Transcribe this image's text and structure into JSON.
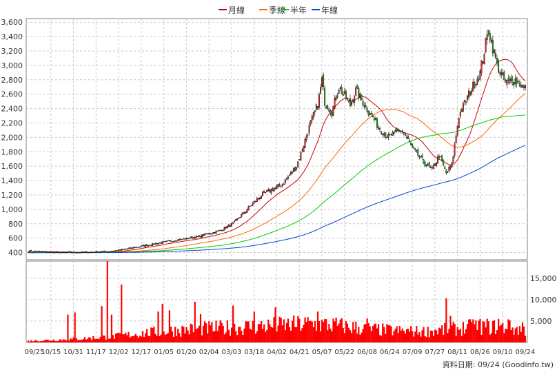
{
  "legend": [
    {
      "label": "月線",
      "color": "#cc0000"
    },
    {
      "label": "季線",
      "color": "#ff6600"
    },
    {
      "label": "半年",
      "color": "#00cc00"
    },
    {
      "label": "年線",
      "color": "#0044cc"
    }
  ],
  "source": "資料日期: 09/24 (Goodinfo.tw)",
  "chart_data": [
    {
      "type": "candlestick",
      "title": "",
      "ylim": [
        300,
        3650
      ],
      "y_ticks": [
        400,
        600,
        800,
        1000,
        1200,
        1400,
        1600,
        1800,
        2000,
        2200,
        2400,
        2600,
        2800,
        3000,
        3200,
        3400,
        3600
      ],
      "x_tick_labels": [
        "09/25",
        "10/15",
        "10/31",
        "11/17",
        "12/02",
        "12/17",
        "01/05",
        "01/20",
        "02/04",
        "03/03",
        "03/18",
        "04/02",
        "04/21",
        "05/07",
        "05/22",
        "06/08",
        "06/24",
        "07/09",
        "07/27",
        "08/11",
        "08/26",
        "09/10",
        "09/24"
      ],
      "grid": true,
      "legend_position": "top-center",
      "close_anchors": [
        [
          0,
          420
        ],
        [
          20,
          400
        ],
        [
          45,
          405
        ],
        [
          60,
          420
        ],
        [
          78,
          480
        ],
        [
          95,
          540
        ],
        [
          120,
          620
        ],
        [
          135,
          700
        ],
        [
          145,
          800
        ],
        [
          155,
          1000
        ],
        [
          165,
          1200
        ],
        [
          180,
          1350
        ],
        [
          190,
          1600
        ],
        [
          195,
          1900
        ],
        [
          200,
          2200
        ],
        [
          205,
          2450
        ],
        [
          208,
          2800
        ],
        [
          210,
          2500
        ],
        [
          215,
          2350
        ],
        [
          220,
          2700
        ],
        [
          228,
          2450
        ],
        [
          232,
          2650
        ],
        [
          240,
          2400
        ],
        [
          248,
          2150
        ],
        [
          255,
          2000
        ],
        [
          265,
          2100
        ],
        [
          272,
          1850
        ],
        [
          280,
          1650
        ],
        [
          286,
          1550
        ],
        [
          291,
          1750
        ],
        [
          296,
          1500
        ],
        [
          300,
          1620
        ],
        [
          305,
          2300
        ],
        [
          312,
          2600
        ],
        [
          320,
          2900
        ],
        [
          326,
          3500
        ],
        [
          332,
          3000
        ],
        [
          338,
          2750
        ],
        [
          345,
          2800
        ],
        [
          352,
          2680
        ]
      ],
      "ma_params": [
        {
          "name": "月線",
          "window": 20
        },
        {
          "name": "季線",
          "window": 60
        },
        {
          "name": "半年",
          "window": 120
        },
        {
          "name": "年線",
          "window": 240
        }
      ]
    },
    {
      "type": "bar",
      "title": "",
      "ylim": [
        0,
        19000
      ],
      "y_ticks": [
        5000,
        10000,
        15000
      ],
      "y_tick_labels": [
        "5,000",
        "10,000",
        "15,000"
      ],
      "volume_anchors": [
        [
          0,
          400
        ],
        [
          30,
          800
        ],
        [
          60,
          1500
        ],
        [
          85,
          2500
        ],
        [
          100,
          3000
        ],
        [
          120,
          3500
        ],
        [
          140,
          3800
        ],
        [
          165,
          4200
        ],
        [
          190,
          4600
        ],
        [
          200,
          4800
        ],
        [
          215,
          4500
        ],
        [
          240,
          3500
        ],
        [
          260,
          3000
        ],
        [
          280,
          2800
        ],
        [
          300,
          3400
        ],
        [
          320,
          4200
        ],
        [
          340,
          3800
        ],
        [
          352,
          3200
        ]
      ],
      "volume_spikes": [
        [
          28,
          6500
        ],
        [
          33,
          7000
        ],
        [
          52,
          8500
        ],
        [
          56,
          19000
        ],
        [
          59,
          6500
        ],
        [
          66,
          13500
        ],
        [
          92,
          7200
        ],
        [
          95,
          9000
        ],
        [
          100,
          7500
        ],
        [
          118,
          9500
        ],
        [
          122,
          6600
        ],
        [
          145,
          8600
        ],
        [
          160,
          7200
        ],
        [
          175,
          8200
        ],
        [
          205,
          7200
        ],
        [
          240,
          5600
        ],
        [
          296,
          10300
        ],
        [
          299,
          6200
        ],
        [
          315,
          5400
        ],
        [
          333,
          5500
        ],
        [
          340,
          5400
        ],
        [
          350,
          4700
        ]
      ]
    }
  ]
}
